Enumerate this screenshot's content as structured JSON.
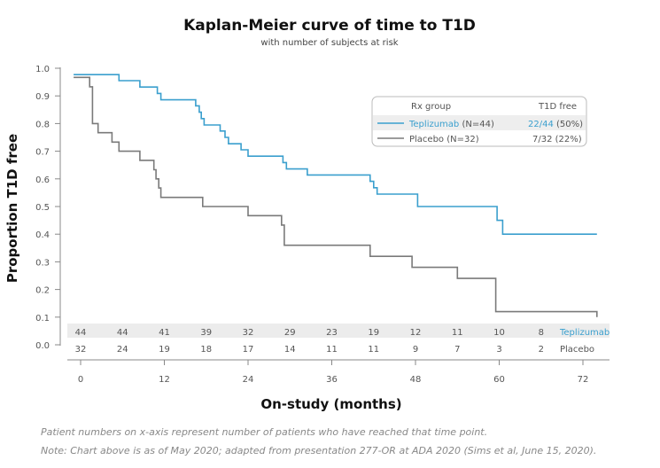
{
  "chart_data": {
    "type": "line",
    "title": "Kaplan-Meier curve of time to T1D",
    "subtitle": "with number of subjects at risk",
    "xlabel": "On-study (months)",
    "ylabel": "Proportion T1D free",
    "xlim": [
      -2,
      75
    ],
    "ylim": [
      0,
      1.0
    ],
    "xticks": [
      0,
      12,
      24,
      36,
      48,
      60,
      72
    ],
    "yticks": [
      0.0,
      0.1,
      0.2,
      0.3,
      0.4,
      0.5,
      0.6,
      0.7,
      0.8,
      0.9,
      1.0
    ],
    "ytick_labels": [
      "0.0",
      "0.1",
      "0.2",
      "0.3",
      "0.4",
      "0.5",
      "0.6",
      "0.7",
      "0.8",
      "0.9",
      "1.0"
    ],
    "series": [
      {
        "name": "Teplizumab (N=44)",
        "color": "#3a9fce",
        "steps": [
          [
            -1,
            0.977
          ],
          [
            5.5,
            0.977
          ],
          [
            5.5,
            0.955
          ],
          [
            8.5,
            0.955
          ],
          [
            8.5,
            0.932
          ],
          [
            11,
            0.932
          ],
          [
            11,
            0.909
          ],
          [
            11.5,
            0.909
          ],
          [
            11.5,
            0.886
          ],
          [
            16.5,
            0.886
          ],
          [
            16.5,
            0.864
          ],
          [
            17,
            0.864
          ],
          [
            17,
            0.841
          ],
          [
            17.3,
            0.841
          ],
          [
            17.3,
            0.818
          ],
          [
            17.7,
            0.818
          ],
          [
            17.7,
            0.795
          ],
          [
            20,
            0.795
          ],
          [
            20,
            0.773
          ],
          [
            20.7,
            0.773
          ],
          [
            20.7,
            0.75
          ],
          [
            21.2,
            0.75
          ],
          [
            21.2,
            0.727
          ],
          [
            23,
            0.727
          ],
          [
            23,
            0.705
          ],
          [
            24,
            0.705
          ],
          [
            24,
            0.682
          ],
          [
            29,
            0.682
          ],
          [
            29,
            0.659
          ],
          [
            29.5,
            0.659
          ],
          [
            29.5,
            0.636
          ],
          [
            32.5,
            0.636
          ],
          [
            32.5,
            0.614
          ],
          [
            41.5,
            0.614
          ],
          [
            41.5,
            0.591
          ],
          [
            42,
            0.591
          ],
          [
            42,
            0.568
          ],
          [
            42.5,
            0.568
          ],
          [
            42.5,
            0.545
          ],
          [
            48.3,
            0.545
          ],
          [
            48.3,
            0.5
          ],
          [
            59.7,
            0.5
          ],
          [
            59.7,
            0.45
          ],
          [
            60.5,
            0.45
          ],
          [
            60.5,
            0.4
          ],
          [
            74,
            0.4
          ]
        ]
      },
      {
        "name": "Placebo (N=32)",
        "color": "#7a7a7a",
        "steps": [
          [
            -1,
            0.967
          ],
          [
            1.3,
            0.967
          ],
          [
            1.3,
            0.933
          ],
          [
            1.7,
            0.933
          ],
          [
            1.7,
            0.8
          ],
          [
            2.5,
            0.8
          ],
          [
            2.5,
            0.767
          ],
          [
            4.5,
            0.767
          ],
          [
            4.5,
            0.733
          ],
          [
            5.5,
            0.733
          ],
          [
            5.5,
            0.7
          ],
          [
            8.5,
            0.7
          ],
          [
            8.5,
            0.667
          ],
          [
            10.5,
            0.667
          ],
          [
            10.5,
            0.633
          ],
          [
            10.8,
            0.633
          ],
          [
            10.8,
            0.6
          ],
          [
            11.2,
            0.6
          ],
          [
            11.2,
            0.567
          ],
          [
            11.5,
            0.567
          ],
          [
            11.5,
            0.533
          ],
          [
            17.5,
            0.533
          ],
          [
            17.5,
            0.5
          ],
          [
            24,
            0.5
          ],
          [
            24,
            0.467
          ],
          [
            28.8,
            0.467
          ],
          [
            28.8,
            0.433
          ],
          [
            29.2,
            0.433
          ],
          [
            29.2,
            0.36
          ],
          [
            41.5,
            0.36
          ],
          [
            41.5,
            0.32
          ],
          [
            47.5,
            0.32
          ],
          [
            47.5,
            0.28
          ],
          [
            54,
            0.28
          ],
          [
            54,
            0.24
          ],
          [
            59.5,
            0.24
          ],
          [
            59.5,
            0.12
          ],
          [
            74,
            0.12
          ],
          [
            74,
            0.1
          ]
        ]
      }
    ],
    "legend": {
      "placement": "top-right",
      "header_group": "Rx group",
      "header_value": "T1D free",
      "entries": [
        {
          "label": "Teplizumab",
          "n_text": "(N=44)",
          "value_main": "22/44",
          "value_paren": "(50%)",
          "color": "#3a9fce"
        },
        {
          "label": "Placebo",
          "n_text": "(N=32)",
          "value_main": "7/32",
          "value_paren": "(22%)",
          "color": "#7a7a7a"
        }
      ]
    },
    "at_risk": {
      "times": [
        0,
        6,
        12,
        18,
        24,
        30,
        36,
        42,
        48,
        54,
        60,
        66
      ],
      "rows": [
        {
          "label": "Teplizumab",
          "counts": [
            "44",
            "44",
            "41",
            "39",
            "32",
            "29",
            "23",
            "19",
            "12",
            "11",
            "10",
            "8"
          ]
        },
        {
          "label": "Placebo",
          "counts": [
            "32",
            "24",
            "19",
            "18",
            "17",
            "14",
            "11",
            "11",
            "9",
            "7",
            "3",
            "2"
          ]
        }
      ]
    },
    "footnotes": [
      "Patient numbers on x-axis represent number of patients who have reached that time point.",
      "Note: Chart above is as of May 2020; adapted from presentation 277-OR at ADA 2020 (Sims et al, June 15, 2020)."
    ]
  }
}
